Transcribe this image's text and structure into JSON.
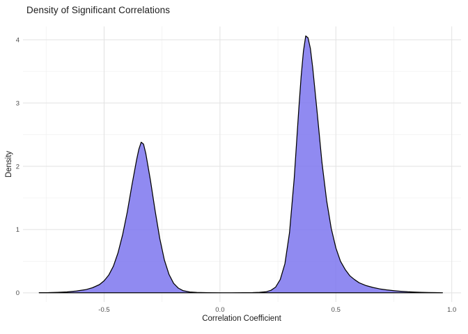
{
  "page": {
    "background": "#ffffff"
  },
  "chart_data": {
    "type": "area",
    "title": "Density of Significant Correlations",
    "xlabel": "Correlation Coefficient",
    "ylabel": "Density",
    "x_ticks": [
      -0.5,
      0.0,
      0.5,
      1.0
    ],
    "x_tick_labels": [
      "-0.5",
      "0.0",
      "0.5",
      "1.0"
    ],
    "y_ticks": [
      0,
      1,
      2,
      3,
      4
    ],
    "y_tick_labels": [
      "0",
      "1",
      "2",
      "3",
      "4"
    ],
    "xlim": [
      -0.85,
      1.04
    ],
    "ylim": [
      -0.145,
      4.21
    ],
    "grid": true,
    "legend": "none",
    "fill_color": "#7d76ee",
    "fill_opacity": 0.85,
    "stroke_color": "#000000",
    "stroke_width": 1.25,
    "grid_major_color": "#e2e2e2",
    "grid_minor_color": "#f0f0f0",
    "tick_label_color": "#4d4d4d",
    "points": [
      [
        -0.78,
        0.002
      ],
      [
        -0.74,
        0.004
      ],
      [
        -0.7,
        0.008
      ],
      [
        -0.66,
        0.015
      ],
      [
        -0.62,
        0.028
      ],
      [
        -0.58,
        0.05
      ],
      [
        -0.55,
        0.08
      ],
      [
        -0.52,
        0.13
      ],
      [
        -0.5,
        0.19
      ],
      [
        -0.48,
        0.28
      ],
      [
        -0.46,
        0.42
      ],
      [
        -0.44,
        0.63
      ],
      [
        -0.42,
        0.92
      ],
      [
        -0.4,
        1.28
      ],
      [
        -0.38,
        1.7
      ],
      [
        -0.36,
        2.1
      ],
      [
        -0.35,
        2.27
      ],
      [
        -0.34,
        2.38
      ],
      [
        -0.33,
        2.35
      ],
      [
        -0.32,
        2.2
      ],
      [
        -0.3,
        1.78
      ],
      [
        -0.28,
        1.3
      ],
      [
        -0.26,
        0.86
      ],
      [
        -0.24,
        0.52
      ],
      [
        -0.22,
        0.29
      ],
      [
        -0.2,
        0.15
      ],
      [
        -0.18,
        0.075
      ],
      [
        -0.16,
        0.035
      ],
      [
        -0.13,
        0.013
      ],
      [
        -0.1,
        0.006
      ],
      [
        -0.05,
        0.002
      ],
      [
        0.0,
        0.001
      ],
      [
        0.05,
        0.001
      ],
      [
        0.1,
        0.002
      ],
      [
        0.14,
        0.004
      ],
      [
        0.17,
        0.008
      ],
      [
        0.2,
        0.018
      ],
      [
        0.22,
        0.04
      ],
      [
        0.24,
        0.09
      ],
      [
        0.26,
        0.21
      ],
      [
        0.28,
        0.46
      ],
      [
        0.3,
        0.95
      ],
      [
        0.32,
        1.8
      ],
      [
        0.34,
        2.9
      ],
      [
        0.35,
        3.42
      ],
      [
        0.36,
        3.82
      ],
      [
        0.37,
        4.06
      ],
      [
        0.38,
        4.03
      ],
      [
        0.39,
        3.86
      ],
      [
        0.4,
        3.56
      ],
      [
        0.42,
        2.82
      ],
      [
        0.44,
        2.06
      ],
      [
        0.46,
        1.46
      ],
      [
        0.48,
        1.02
      ],
      [
        0.5,
        0.71
      ],
      [
        0.52,
        0.5
      ],
      [
        0.54,
        0.37
      ],
      [
        0.56,
        0.27
      ],
      [
        0.58,
        0.21
      ],
      [
        0.6,
        0.16
      ],
      [
        0.63,
        0.115
      ],
      [
        0.66,
        0.085
      ],
      [
        0.69,
        0.062
      ],
      [
        0.72,
        0.046
      ],
      [
        0.75,
        0.034
      ],
      [
        0.78,
        0.024
      ],
      [
        0.81,
        0.017
      ],
      [
        0.84,
        0.012
      ],
      [
        0.87,
        0.008
      ],
      [
        0.9,
        0.005
      ],
      [
        0.93,
        0.003
      ],
      [
        0.96,
        0.001
      ]
    ]
  }
}
